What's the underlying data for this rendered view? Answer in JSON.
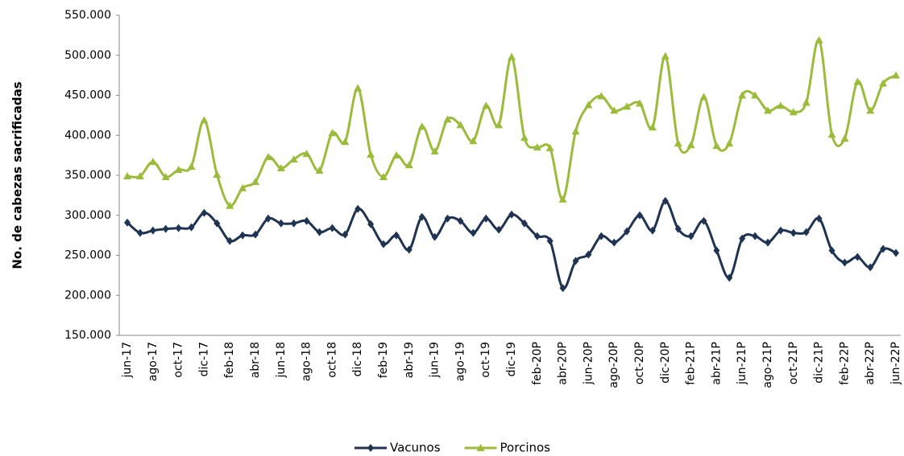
{
  "chart_data": {
    "type": "line",
    "y_label": "No. de cabezas sacrificadas",
    "categories": [
      "jun-17",
      null,
      "ago-17",
      null,
      "oct-17",
      null,
      "dic-17",
      null,
      "feb-18",
      null,
      "abr-18",
      null,
      "jun-18",
      null,
      "ago-18",
      null,
      "oct-18",
      null,
      "dic-18",
      null,
      "feb-19",
      null,
      "abr-19",
      null,
      "jun-19",
      null,
      "ago-19",
      null,
      "oct-19",
      null,
      "dic-19",
      null,
      "feb-20P",
      null,
      "abr-20P",
      null,
      "jun-20P",
      null,
      "ago-20P",
      null,
      "oct-20P",
      null,
      "dic-20P",
      null,
      "feb-21P",
      null,
      "abr-21P",
      null,
      "jun-21P",
      null,
      "ago-21P",
      null,
      "oct-21P",
      null,
      "dic-21P",
      null,
      "feb-22P",
      null,
      "abr-22P",
      null,
      "jun-22P"
    ],
    "series": [
      {
        "name": "Vacunos",
        "color": "#1f3352",
        "marker": "diamond",
        "values": [
          291000,
          278000,
          281000,
          283000,
          284000,
          285000,
          303000,
          290000,
          268000,
          275000,
          276000,
          296000,
          290000,
          290000,
          293000,
          279000,
          284000,
          276000,
          308000,
          289000,
          264000,
          275000,
          257000,
          298000,
          273000,
          296000,
          293000,
          278000,
          296000,
          282000,
          301000,
          290000,
          274000,
          268000,
          209000,
          243000,
          251000,
          274000,
          266000,
          280000,
          300000,
          281000,
          318000,
          283000,
          274000,
          293000,
          256000,
          222000,
          271000,
          274000,
          266000,
          281000,
          278000,
          279000,
          296000,
          256000,
          241000,
          248000,
          235000,
          258000,
          253000
        ]
      },
      {
        "name": "Porcinos",
        "color": "#9bbb3b",
        "marker": "triangle",
        "values": [
          349000,
          349000,
          367000,
          348000,
          357000,
          361000,
          419000,
          351000,
          312000,
          334000,
          342000,
          373000,
          359000,
          370000,
          377000,
          356000,
          403000,
          392000,
          459000,
          376000,
          348000,
          375000,
          363000,
          411000,
          380000,
          420000,
          413000,
          393000,
          437000,
          413000,
          498000,
          397000,
          385000,
          384000,
          320000,
          405000,
          438000,
          449000,
          431000,
          436000,
          440000,
          410000,
          499000,
          390000,
          388000,
          448000,
          387000,
          390000,
          450000,
          450000,
          431000,
          437000,
          429000,
          441000,
          519000,
          401000,
          396000,
          467000,
          431000,
          465000,
          475000
        ]
      }
    ],
    "ylim": [
      150000,
      550000
    ],
    "yticks": [
      {
        "value": 150000,
        "label": "150.000"
      },
      {
        "value": 200000,
        "label": "200.000"
      },
      {
        "value": 250000,
        "label": "250.000"
      },
      {
        "value": 300000,
        "label": "300.000"
      },
      {
        "value": 350000,
        "label": "350.000"
      },
      {
        "value": 400000,
        "label": "400.000"
      },
      {
        "value": 450000,
        "label": "450.000"
      },
      {
        "value": 500000,
        "label": "500.000"
      },
      {
        "value": 550000,
        "label": "550.000"
      }
    ],
    "grid": false,
    "legend": "bottom"
  }
}
